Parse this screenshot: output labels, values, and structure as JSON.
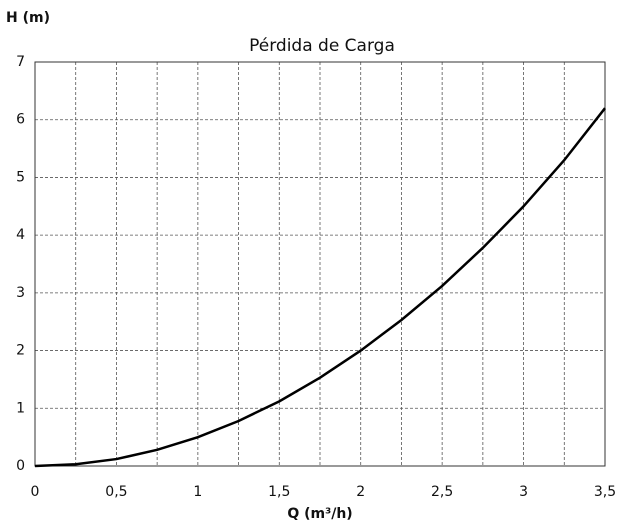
{
  "chart_data": {
    "type": "line",
    "title": "Pérdida de Carga",
    "y_label": "H (m)",
    "x_label": "Q (m³/h)",
    "x": [
      0,
      0.25,
      0.5,
      0.75,
      1,
      1.25,
      1.5,
      1.75,
      2,
      2.25,
      2.5,
      2.75,
      3,
      3.25,
      3.5
    ],
    "values": [
      0,
      0.03,
      0.12,
      0.28,
      0.5,
      0.78,
      1.12,
      1.53,
      2.0,
      2.53,
      3.12,
      3.78,
      4.5,
      5.3,
      6.2
    ],
    "color": "#000000",
    "xlim": [
      0,
      3.5
    ],
    "ylim": [
      0,
      7
    ],
    "xticks": [
      0,
      {
        "value": 0.5,
        "label": "0,5"
      },
      1,
      {
        "value": 1.5,
        "label": "1,5"
      },
      2,
      {
        "value": 2.5,
        "label": "2,5"
      },
      3,
      {
        "value": 3.5,
        "label": "3,5"
      }
    ],
    "x_minor_ticks": [
      0.25,
      0.75,
      1.25,
      1.75,
      2.25,
      2.75,
      3.25
    ],
    "yticks": [
      0,
      1,
      2,
      3,
      4,
      5,
      6,
      7
    ],
    "grid": true
  }
}
